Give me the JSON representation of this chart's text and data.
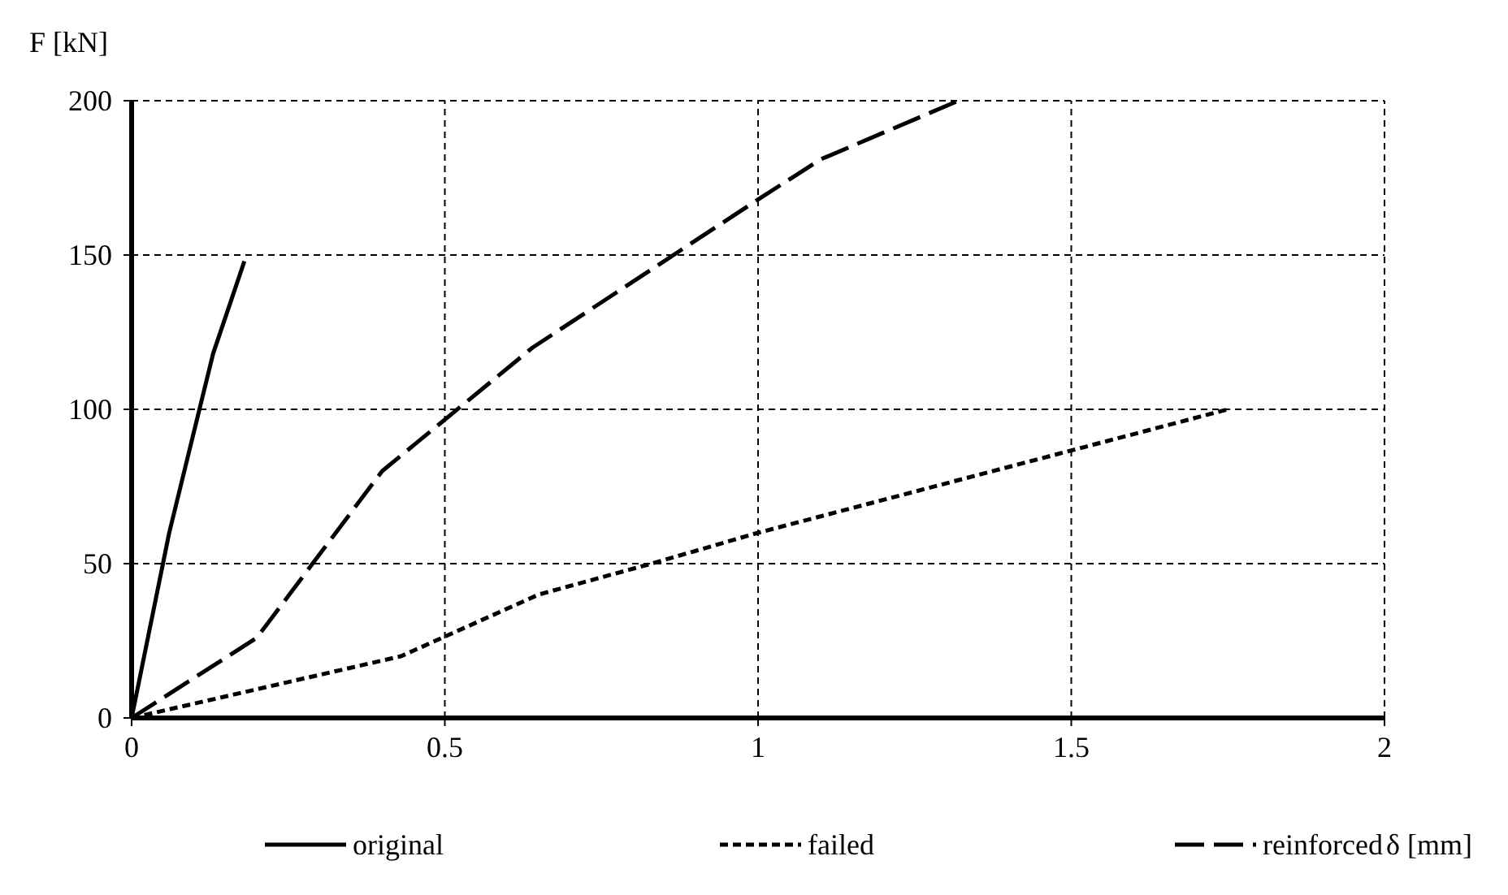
{
  "chart_data": {
    "type": "line",
    "xlabel": "δ [mm]",
    "ylabel": "F [kN]",
    "xlim": [
      0,
      2
    ],
    "ylim": [
      0,
      200
    ],
    "xticks": [
      0,
      0.5,
      1,
      1.5,
      2
    ],
    "yticks": [
      0,
      50,
      100,
      150,
      200
    ],
    "grid": true,
    "legend": "bottom",
    "series": [
      {
        "name": "original",
        "color": "#000000",
        "line_style": "solid",
        "x": [
          0,
          0.06,
          0.13,
          0.18
        ],
        "values": [
          0,
          60,
          118,
          148
        ]
      },
      {
        "name": "failed",
        "color": "#000000",
        "line_style": "dotted",
        "x": [
          0,
          0.43,
          0.65,
          0.83,
          1,
          1.75
        ],
        "values": [
          0,
          20,
          40,
          50,
          60,
          100
        ]
      },
      {
        "name": "reinforced",
        "color": "#000000",
        "line_style": "dashed",
        "x": [
          0,
          0.2,
          0.4,
          0.64,
          1,
          1.1,
          1.32
        ],
        "values": [
          0,
          26,
          80,
          120,
          168,
          181,
          200
        ]
      }
    ]
  }
}
